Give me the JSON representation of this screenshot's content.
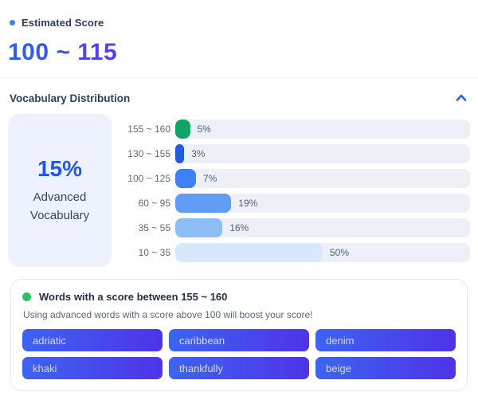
{
  "colors": {
    "accent_blue": "#3b82f6",
    "chevron_blue": "#2563eb",
    "score_gradient_start": "#2563eb",
    "score_gradient_end": "#5b3bee",
    "green_dot": "#22c55e",
    "chip_gradient_start": "#3d64f0",
    "chip_gradient_end": "#4f33e9"
  },
  "estimated_score": {
    "label": "Estimated Score",
    "value": "100 ~ 115"
  },
  "vocabulary_distribution": {
    "title": "Vocabulary Distribution",
    "advanced_summary": {
      "percent": "15%",
      "label_line1": "Advanced",
      "label_line2": "Vocabulary"
    }
  },
  "chart_data": {
    "type": "bar",
    "orientation": "horizontal",
    "title": "Vocabulary Distribution",
    "categories": [
      "155 ~ 160",
      "130 ~ 155",
      "100 ~ 125",
      "60 ~ 95",
      "35 ~ 55",
      "10 ~ 35"
    ],
    "values": [
      5,
      3,
      7,
      19,
      16,
      50
    ],
    "value_labels": [
      "5%",
      "3%",
      "7%",
      "19%",
      "16%",
      "50%"
    ],
    "bar_colors": [
      "#12a368",
      "#2458e6",
      "#3f80f3",
      "#619df5",
      "#8fbdf8",
      "#d8e8fd"
    ],
    "track_color": "#edf1f7",
    "xlim": [
      0,
      100
    ],
    "value_label_position": "right-of-bar",
    "grid": false,
    "legend": false
  },
  "words_card": {
    "title": "Words with a score between 155 ~ 160",
    "subtitle": "Using advanced words with a score above 100 will boost your score!",
    "words": [
      "adriatic",
      "caribbean",
      "denim",
      "khaki",
      "thankfully",
      "beige"
    ]
  }
}
